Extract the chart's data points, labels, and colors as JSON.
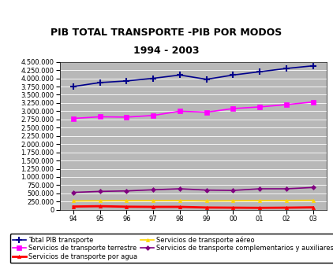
{
  "title_line1": "PIB TOTAL TRANSPORTE -PIB POR MODOS",
  "title_line2": "1994 - 2003",
  "years": [
    "94",
    "95",
    "96",
    "97",
    "98",
    "99",
    "00",
    "01",
    "02",
    "03"
  ],
  "series_order": [
    "Total PIB transporte",
    "Servicios de transporte terrestre",
    "Servicios de transporte por agua",
    "Servicios de transporte aéreo",
    "Servicios de transporte complementarios y auxiliares"
  ],
  "series": {
    "Total PIB transporte": {
      "values": [
        3750000,
        3870000,
        3920000,
        4000000,
        4100000,
        3970000,
        4100000,
        4200000,
        4300000,
        4380000
      ],
      "color": "#00008B",
      "marker": "+",
      "linewidth": 1.2,
      "markersize": 6,
      "linestyle": "-",
      "markeredgewidth": 1.5
    },
    "Servicios de transporte terrestre": {
      "values": [
        2780000,
        2830000,
        2820000,
        2870000,
        3000000,
        2970000,
        3080000,
        3130000,
        3200000,
        3280000
      ],
      "color": "#FF00FF",
      "marker": "s",
      "linewidth": 1.2,
      "markersize": 4,
      "linestyle": "-",
      "markeredgewidth": 0.5
    },
    "Servicios de transporte por agua": {
      "values": [
        100000,
        110000,
        95000,
        90000,
        90000,
        70000,
        65000,
        60000,
        65000,
        75000
      ],
      "color": "#FF0000",
      "marker": "^",
      "linewidth": 2.0,
      "markersize": 3,
      "linestyle": "-",
      "markeredgewidth": 0.5
    },
    "Servicios de transporte aéreo": {
      "values": [
        270000,
        275000,
        280000,
        280000,
        285000,
        270000,
        275000,
        280000,
        285000,
        290000
      ],
      "color": "#FFD700",
      "marker": "^",
      "linewidth": 1.2,
      "markersize": 3,
      "linestyle": "-",
      "markeredgewidth": 0.5
    },
    "Servicios de transporte complementarios y auxiliares": {
      "values": [
        530000,
        560000,
        575000,
        610000,
        640000,
        600000,
        590000,
        640000,
        640000,
        680000
      ],
      "color": "#800080",
      "marker": "D",
      "linewidth": 1.2,
      "markersize": 3,
      "linestyle": "-",
      "markeredgewidth": 0.5
    }
  },
  "ylim": [
    0,
    4500000
  ],
  "yticks": [
    0,
    250000,
    500000,
    750000,
    1000000,
    1250000,
    1500000,
    1750000,
    2000000,
    2250000,
    2500000,
    2750000,
    3000000,
    3250000,
    3500000,
    3750000,
    4000000,
    4250000,
    4500000
  ],
  "plot_bg_color": "#B8B8B8",
  "outer_bg_color": "#FFFFFF",
  "grid_color": "#FFFFFF",
  "title_fontsize": 9,
  "tick_fontsize": 6,
  "legend_fontsize": 6
}
